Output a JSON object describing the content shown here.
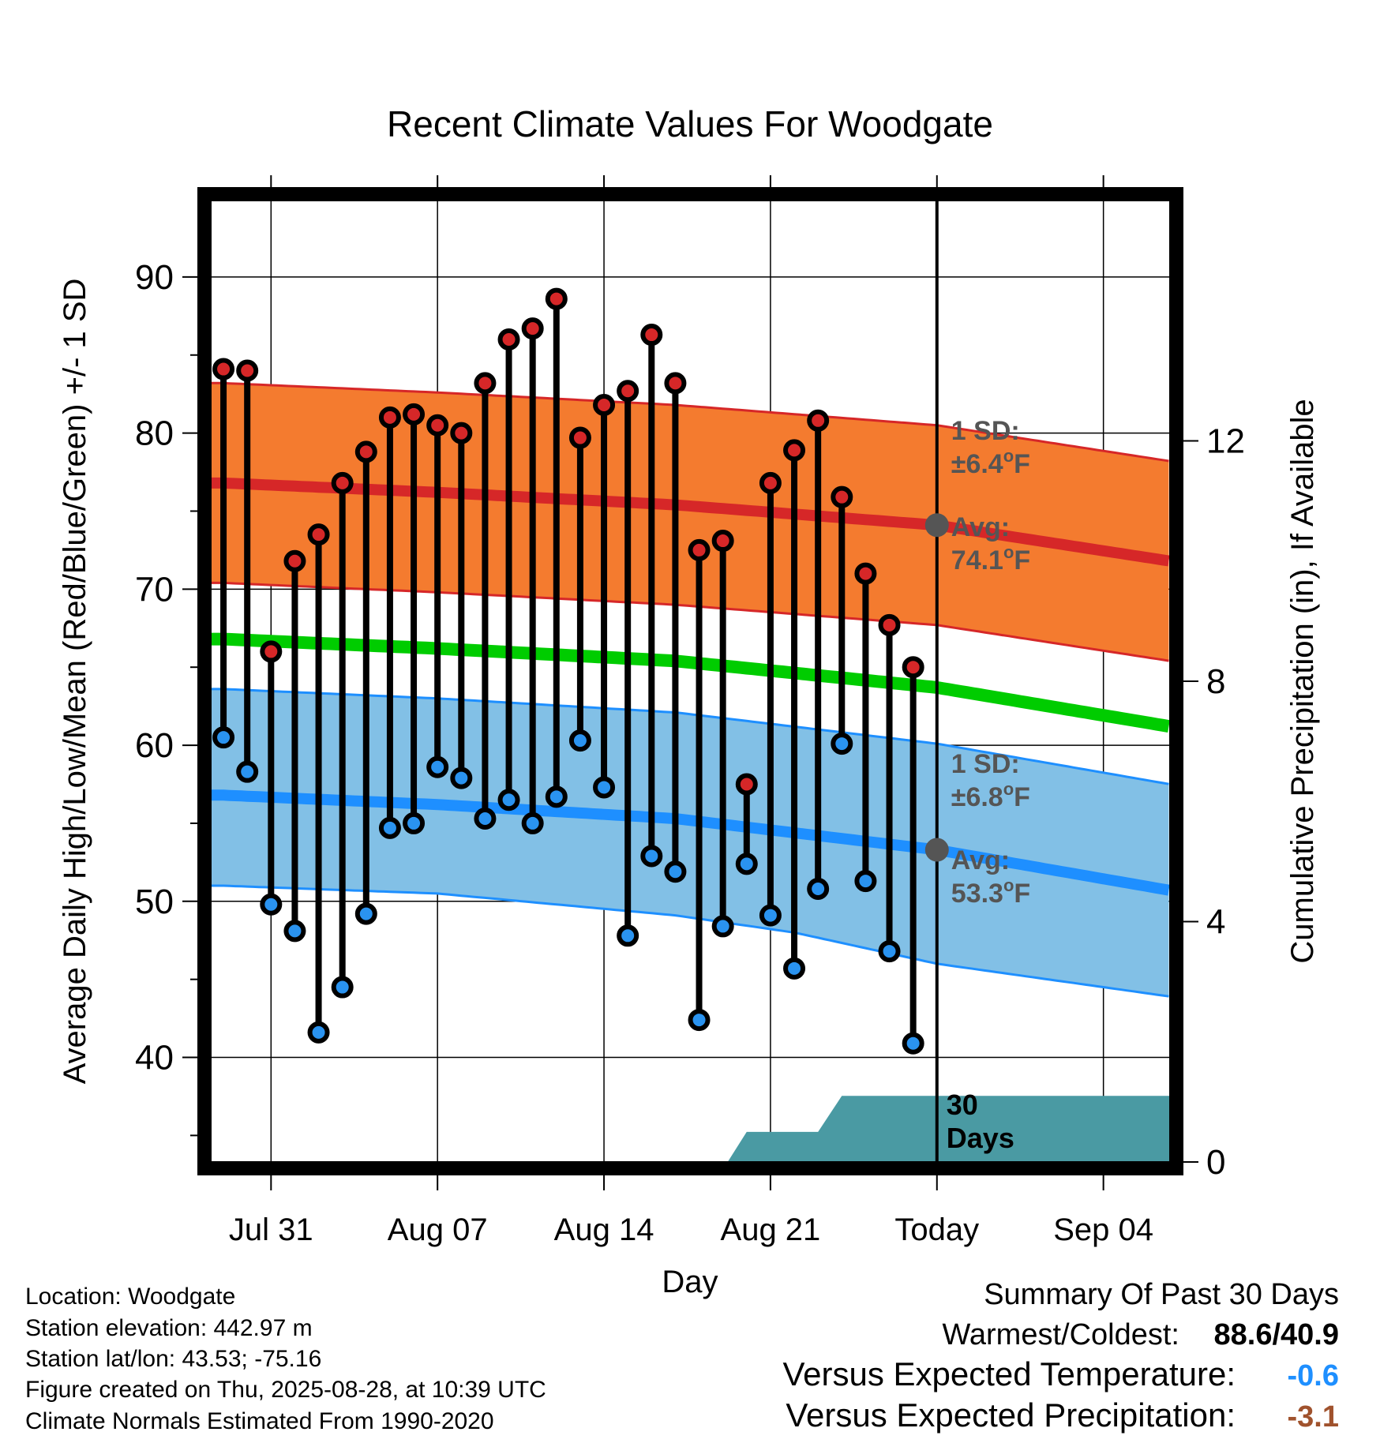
{
  "chart_data": {
    "type": "line",
    "title": "Recent Climate Values For Woodgate",
    "xlabel": "Day",
    "ylabel": "Average Daily High/Low/Mean (Red/Blue/Green) +/- 1 SD",
    "y2label": "Cumulative Precipitation (in), If Available",
    "ylim": [
      33.3,
      94.9
    ],
    "y2lim": [
      0,
      16
    ],
    "x_ticks": [
      {
        "day": 3,
        "label": "Jul 31"
      },
      {
        "day": 10,
        "label": "Aug 07"
      },
      {
        "day": 17,
        "label": "Aug 14"
      },
      {
        "day": 24,
        "label": "Aug 21"
      },
      {
        "day": 31,
        "label": "Today"
      },
      {
        "day": 38,
        "label": "Sep 04"
      }
    ],
    "y_ticks": [
      40,
      50,
      60,
      70,
      80,
      90
    ],
    "y2_ticks": [
      0,
      4,
      8,
      12
    ],
    "xlim": [
      0.5,
      40.8
    ],
    "today_day": 31,
    "today_marker_label": "30 Days",
    "highs": [
      84.1,
      84.0,
      66.0,
      71.8,
      73.5,
      76.8,
      78.8,
      81.0,
      81.2,
      80.5,
      80.0,
      83.2,
      86.0,
      86.7,
      88.6,
      79.7,
      81.8,
      82.7,
      86.3,
      83.2,
      72.5,
      73.1,
      57.5,
      76.8,
      78.9,
      80.8,
      75.9,
      71.0,
      67.7,
      65.0
    ],
    "lows": [
      60.5,
      58.3,
      49.8,
      48.1,
      41.6,
      44.5,
      49.2,
      54.7,
      55.0,
      58.6,
      57.9,
      55.3,
      56.5,
      55.0,
      56.7,
      60.3,
      57.3,
      47.8,
      52.9,
      51.9,
      42.4,
      48.4,
      52.4,
      49.1,
      45.7,
      50.8,
      60.1,
      51.3,
      46.8,
      40.9
    ],
    "normal_high": {
      "days": [
        1,
        10,
        20,
        31,
        40.8
      ],
      "values": [
        76.8,
        76.2,
        75.4,
        74.1,
        71.8
      ]
    },
    "normal_high_sd": 6.4,
    "normal_mean": {
      "days": [
        1,
        10,
        20,
        31,
        40.8
      ],
      "values": [
        66.8,
        66.2,
        65.4,
        63.7,
        61.2
      ]
    },
    "normal_low": {
      "days": [
        1,
        10,
        20,
        31,
        40.8
      ],
      "values": [
        56.8,
        56.2,
        55.3,
        53.3,
        50.7
      ]
    },
    "normal_low_sd": 6.8,
    "low_band_bottom": {
      "days": [
        1,
        10,
        20,
        25,
        31,
        40.8
      ],
      "values": [
        51.0,
        50.5,
        49.1,
        48.0,
        46.0,
        43.9
      ]
    },
    "precip": {
      "days": [
        22.2,
        23,
        26,
        27,
        31,
        40.8
      ],
      "values": [
        0,
        0.5,
        0.5,
        1.1,
        1.1,
        1.1
      ]
    },
    "annotations": {
      "high_sd": {
        "line1": "1 SD:",
        "line2": "±6.4",
        "unit": "F"
      },
      "high_avg": {
        "line1": "Avg:",
        "line2": "74.1",
        "unit": "F"
      },
      "low_sd": {
        "line1": "1 SD:",
        "line2": "±6.8",
        "unit": "F"
      },
      "low_avg": {
        "line1": "Avg:",
        "line2": "53.3",
        "unit": "F"
      },
      "degree_symbol": "o"
    },
    "colors": {
      "high_band": "#f47b2f",
      "high_line": "#d62728",
      "mean_line": "#00cc00",
      "low_band": "#82c0e6",
      "low_line": "#1e8fff",
      "precip": "#4a9aa3",
      "high_marker": "#d62728",
      "low_marker": "#2a93f0",
      "annotation": "#555555"
    }
  },
  "station": {
    "location": "Location: Woodgate",
    "elevation": "Station elevation: 442.97 m",
    "latlon": "Station lat/lon: 43.53; -75.16",
    "created": "Figure created on Thu, 2025-08-28, at 10:39 UTC",
    "normals": "Climate Normals Estimated From 1990-2020"
  },
  "summary": {
    "title": "Summary Of Past 30 Days",
    "warmest_label": "Warmest/Coldest:",
    "warmest_value": "88.6/40.9",
    "temp_label": "Versus Expected Temperature:",
    "temp_value": "-0.6",
    "temp_color": "#1e8fff",
    "precip_label": "Versus Expected Precipitation:",
    "precip_value": "-3.1",
    "precip_color": "#a0522d"
  }
}
